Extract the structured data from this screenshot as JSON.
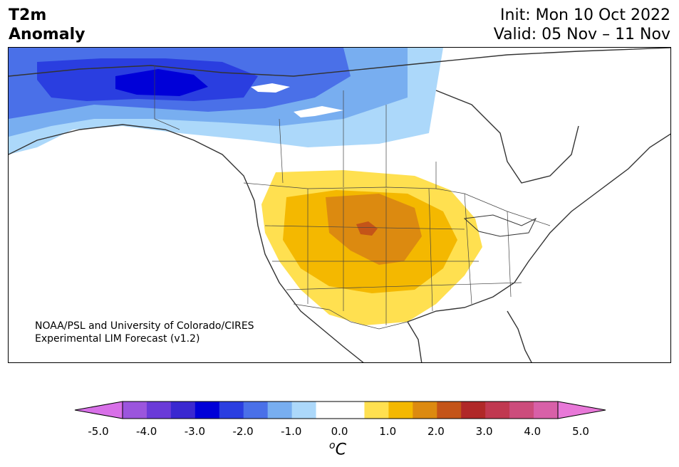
{
  "title": {
    "line1": "T2m",
    "line2": "Anomaly",
    "init": "Init: Mon 10 Oct 2022",
    "valid": "Valid: 05 Nov – 11 Nov"
  },
  "credit": {
    "line1": "NOAA/PSL and University of Colorado/CIRES",
    "line2": "Experimental LIM Forecast (v1.2)"
  },
  "colorbar": {
    "unit_base": "C",
    "unit_sup": "o",
    "ticks": [
      "-5.0",
      "-4.0",
      "-3.0",
      "-2.0",
      "-1.0",
      "0.0",
      "1.0",
      "2.0",
      "3.0",
      "4.0",
      "5.0"
    ],
    "colors": [
      "#d870e8",
      "#9b55dd",
      "#6a3ad8",
      "#3a28d0",
      "#0000d8",
      "#2a3ee0",
      "#4a70e8",
      "#78aef0",
      "#acd8fa",
      "#ffffff",
      "#ffffff",
      "#ffe050",
      "#f4b800",
      "#dc8a10",
      "#c45418",
      "#b02828",
      "#c03850",
      "#cc4c7c",
      "#d860a8",
      "#e878d8"
    ]
  },
  "map": {
    "region": "North America",
    "anomaly_pattern": "cold anomaly over Alaska and northwestern Canada; warm anomaly centered over the central Rockies and High Plains"
  }
}
